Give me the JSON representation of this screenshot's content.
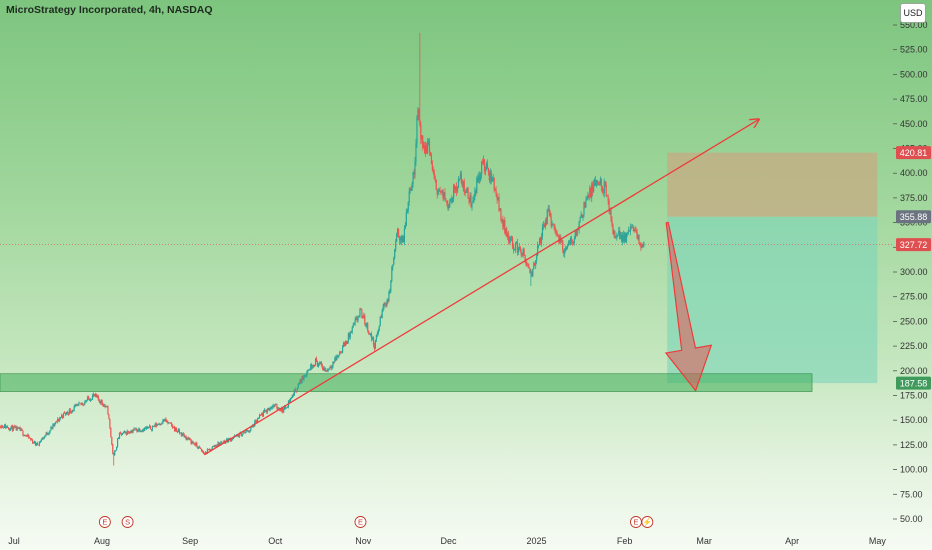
{
  "header": {
    "title": "MicroStrategy Incorporated, 4h, NASDAQ",
    "currency": "USD"
  },
  "colors": {
    "up": "#26a69a",
    "down": "#ef5350",
    "trendline": "#ef3b3b",
    "support_zone": "#3fae5a",
    "risk_zone": "#c9a882",
    "reward_zone": "#7fd6b8",
    "label_stop": "#e04f4f",
    "label_entry": "#6b7380",
    "label_current": "#e04f4f",
    "label_target": "#3f9a5c"
  },
  "chart_data": {
    "type": "candlestick",
    "title": "MicroStrategy Incorporated, 4h, NASDAQ",
    "currency": "USD",
    "ylim": [
      50,
      565
    ],
    "y_ticks": [
      50,
      75,
      100,
      125,
      150,
      175,
      200,
      225,
      250,
      275,
      300,
      325,
      350,
      375,
      400,
      425,
      450,
      475,
      500,
      525,
      550
    ],
    "y_tick_labels": [
      "50.00",
      "75.00",
      "100.00",
      "125.00",
      "150.00",
      "175.00",
      "200.00",
      "225.00",
      "250.00",
      "275.00",
      "300.00",
      "325.00",
      "350.00",
      "375.00",
      "400.00",
      "425.00",
      "450.00",
      "475.00",
      "500.00",
      "525.00",
      "550.00"
    ],
    "x_labels": [
      "Jul",
      "Aug",
      "Sep",
      "Oct",
      "Nov",
      "Dec",
      "2025",
      "Feb",
      "Mar",
      "Apr",
      "May"
    ],
    "x_label_dates": [
      "2024-07-01",
      "2024-08-01",
      "2024-09-01",
      "2024-10-01",
      "2024-11-01",
      "2024-12-01",
      "2025-01-01",
      "2025-02-01",
      "2025-03-01",
      "2025-04-01",
      "2025-05-01"
    ],
    "price_path": [
      [
        "2024-06-26",
        145
      ],
      [
        "2024-07-03",
        140
      ],
      [
        "2024-07-09",
        125
      ],
      [
        "2024-07-13",
        138
      ],
      [
        "2024-07-18",
        155
      ],
      [
        "2024-07-24",
        165
      ],
      [
        "2024-07-29",
        175
      ],
      [
        "2024-08-01",
        168
      ],
      [
        "2024-08-03",
        160
      ],
      [
        "2024-08-05",
        112
      ],
      [
        "2024-08-07",
        135
      ],
      [
        "2024-08-12",
        140
      ],
      [
        "2024-08-18",
        142
      ],
      [
        "2024-08-23",
        150
      ],
      [
        "2024-08-28",
        138
      ],
      [
        "2024-09-03",
        125
      ],
      [
        "2024-09-06",
        116
      ],
      [
        "2024-09-10",
        125
      ],
      [
        "2024-09-16",
        132
      ],
      [
        "2024-09-22",
        140
      ],
      [
        "2024-09-26",
        155
      ],
      [
        "2024-09-30",
        165
      ],
      [
        "2024-10-04",
        160
      ],
      [
        "2024-10-08",
        180
      ],
      [
        "2024-10-11",
        195
      ],
      [
        "2024-10-15",
        210
      ],
      [
        "2024-10-19",
        200
      ],
      [
        "2024-10-23",
        215
      ],
      [
        "2024-10-27",
        235
      ],
      [
        "2024-10-31",
        260
      ],
      [
        "2024-11-03",
        240
      ],
      [
        "2024-11-05",
        225
      ],
      [
        "2024-11-08",
        265
      ],
      [
        "2024-11-10",
        275
      ],
      [
        "2024-11-11",
        300
      ],
      [
        "2024-11-13",
        340
      ],
      [
        "2024-11-15",
        330
      ],
      [
        "2024-11-17",
        380
      ],
      [
        "2024-11-19",
        400
      ],
      [
        "2024-11-20",
        470
      ],
      [
        "2024-11-22",
        420
      ],
      [
        "2024-11-24",
        430
      ],
      [
        "2024-11-26",
        390
      ],
      [
        "2024-11-28",
        380
      ],
      [
        "2024-12-01",
        370
      ],
      [
        "2024-12-05",
        395
      ],
      [
        "2024-12-09",
        370
      ],
      [
        "2024-12-13",
        410
      ],
      [
        "2024-12-17",
        390
      ],
      [
        "2024-12-20",
        350
      ],
      [
        "2024-12-23",
        330
      ],
      [
        "2024-12-27",
        320
      ],
      [
        "2024-12-30",
        295
      ],
      [
        "2025-01-02",
        330
      ],
      [
        "2025-01-05",
        360
      ],
      [
        "2025-01-08",
        340
      ],
      [
        "2025-01-11",
        320
      ],
      [
        "2025-01-15",
        340
      ],
      [
        "2025-01-18",
        370
      ],
      [
        "2025-01-22",
        390
      ],
      [
        "2025-01-25",
        385
      ],
      [
        "2025-01-28",
        340
      ],
      [
        "2025-02-01",
        335
      ],
      [
        "2025-02-04",
        345
      ],
      [
        "2025-02-06",
        330
      ],
      [
        "2025-02-08",
        328
      ]
    ],
    "price_extremes": [
      [
        "2024-08-05",
        104
      ],
      [
        "2024-11-21",
        542
      ],
      [
        "2024-12-30",
        286
      ]
    ],
    "trendline": {
      "from": [
        "2024-09-06",
        115
      ],
      "to": [
        "2025-03-20",
        454
      ]
    },
    "support_zone": {
      "from": "2024-06-25",
      "to": "2025-04-08",
      "low": 179,
      "high": 197
    },
    "position": {
      "type": "short",
      "from": "2025-02-16",
      "to": "2025-05-01",
      "stop": 420.81,
      "entry": 355.88,
      "target": 187.58
    },
    "projection_arrow": {
      "from": [
        "2025-02-16",
        350
      ],
      "to": [
        "2025-02-26",
        180
      ]
    },
    "price_labels": [
      {
        "value": 420.81,
        "text": "420.81",
        "kind": "stop"
      },
      {
        "value": 355.88,
        "text": "355.88",
        "kind": "entry"
      },
      {
        "value": 327.72,
        "text": "327.72",
        "kind": "current"
      },
      {
        "value": 187.58,
        "text": "187.58",
        "kind": "target"
      }
    ],
    "current_price": 327.72,
    "events": [
      {
        "date": "2024-08-02",
        "text": "E"
      },
      {
        "date": "2024-08-10",
        "text": "S"
      },
      {
        "date": "2024-10-31",
        "text": "E"
      },
      {
        "date": "2025-02-05",
        "text": "E"
      },
      {
        "date": "2025-02-09",
        "text": "⚡"
      }
    ]
  }
}
